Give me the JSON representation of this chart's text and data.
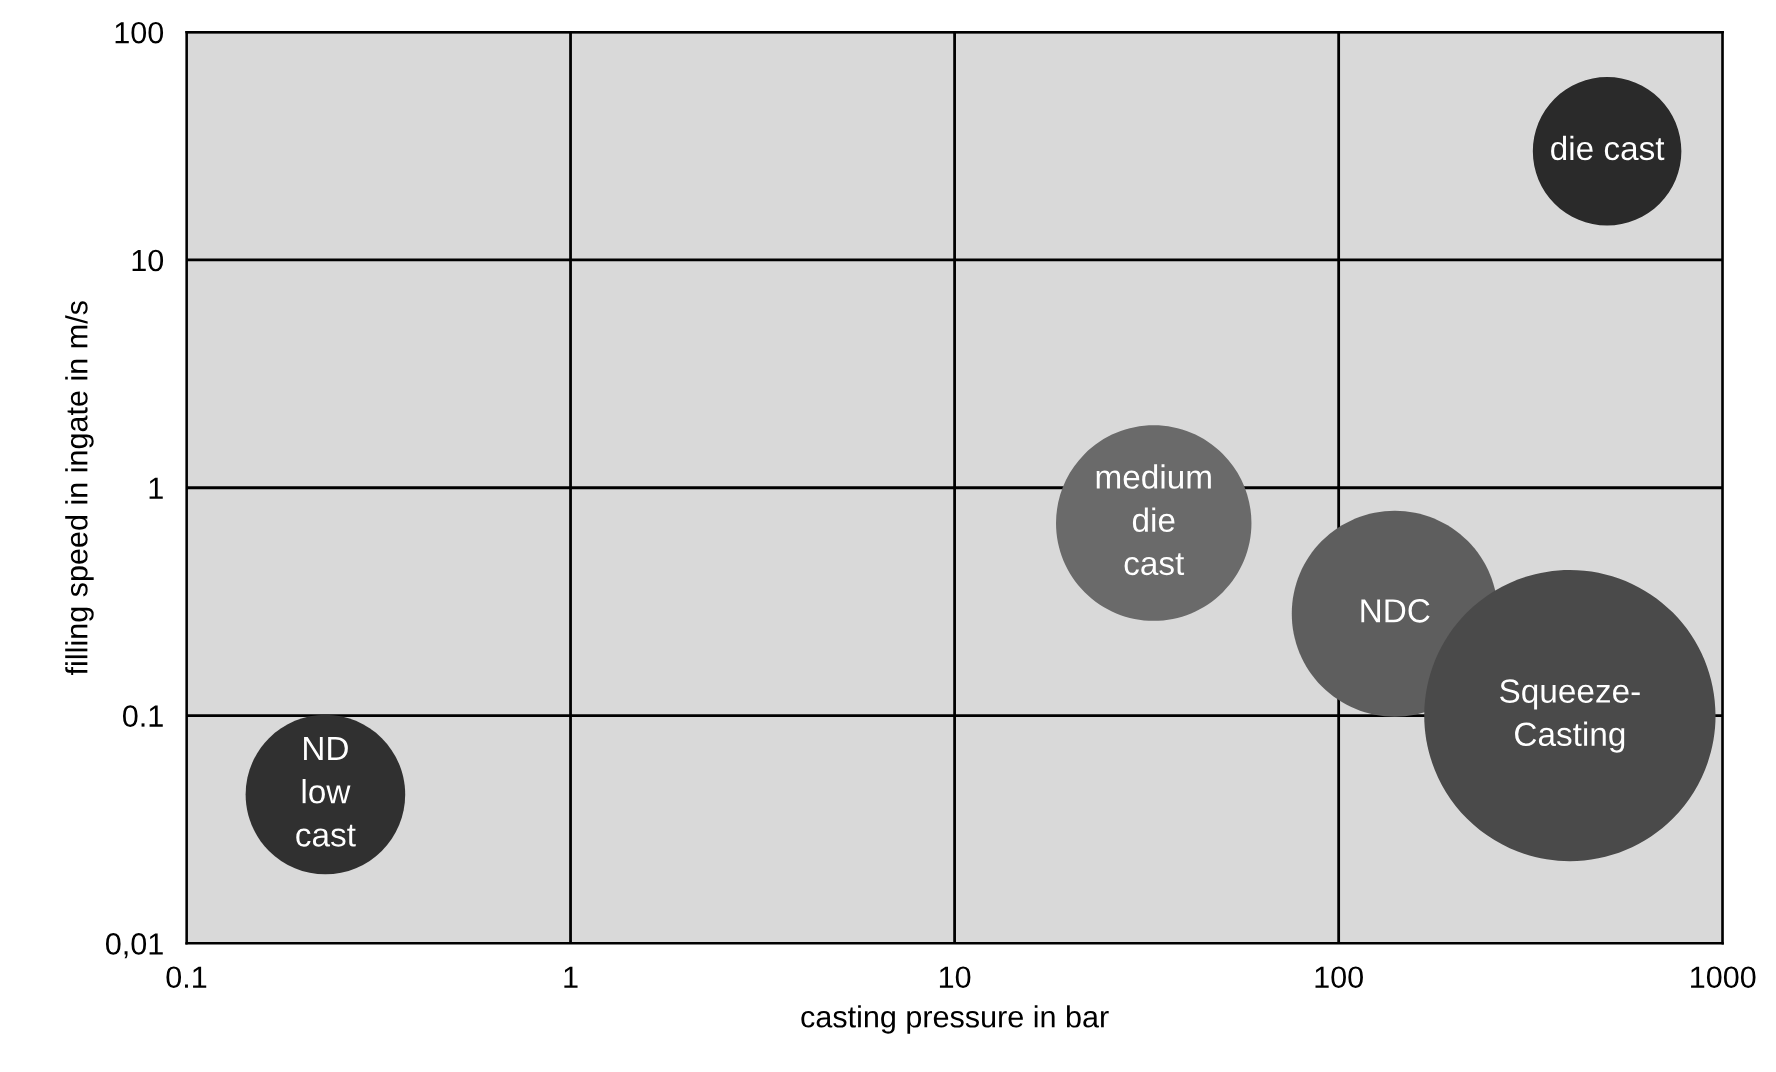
{
  "chart_data": {
    "type": "bubble",
    "xlabel": "casting pressure in bar",
    "ylabel": "filling speed in ingate in m/s",
    "x": [
      0.23,
      33,
      140,
      400,
      500
    ],
    "values": [
      0.045,
      0.7,
      0.28,
      0.1,
      30
    ],
    "sizes": [
      0.3,
      0.45,
      0.5,
      1,
      0.26
    ],
    "colors": [
      "#303030",
      "#6a6a6a",
      "#5e5e5e",
      "#4a4a4a",
      "#2a2a2a"
    ],
    "annotations": [
      {
        "text": "ND\nlow\ncast",
        "x": 0.23,
        "y": 0.045
      },
      {
        "text": "medium\ndie\ncast",
        "x": 33,
        "y": 0.7
      },
      {
        "text": "NDC",
        "x": 140,
        "y": 0.28
      },
      {
        "text": "Squeeze-\nCasting",
        "x": 400,
        "y": 0.1
      },
      {
        "text": "die cast",
        "x": 500,
        "y": 30
      }
    ],
    "log": "xy",
    "xlim": [
      0.1,
      1000
    ],
    "ylim": [
      0.01,
      100
    ],
    "xticks": [
      0.1,
      1,
      10,
      100,
      1000
    ],
    "yticks": [
      {
        "value": 0.01,
        "label": "0,01"
      },
      0.1,
      1,
      10,
      100
    ],
    "grid": true,
    "marker": "circle"
  }
}
